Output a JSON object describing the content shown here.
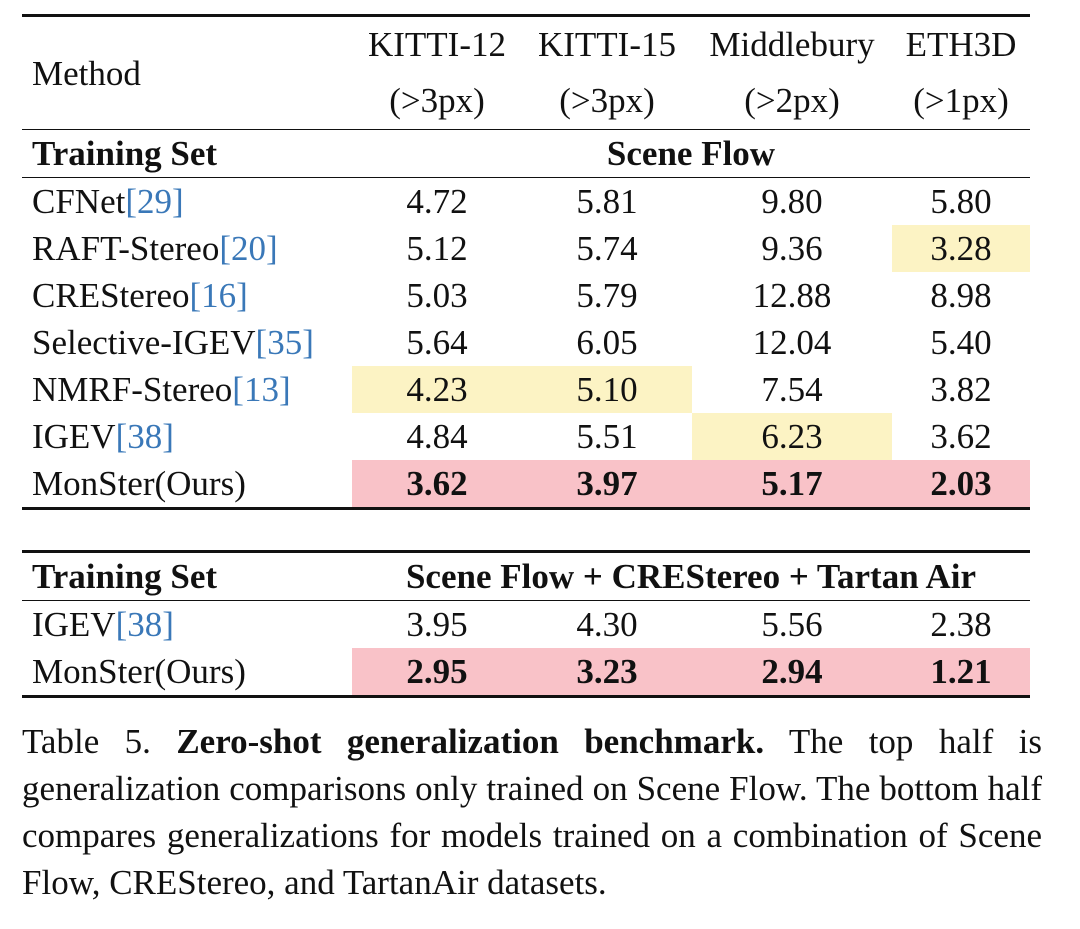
{
  "table": {
    "columns": [
      {
        "name": "KITTI-12",
        "metric": "(>3px)"
      },
      {
        "name": "KITTI-15",
        "metric": "(>3px)"
      },
      {
        "name": "Middlebury",
        "metric": "(>2px)"
      },
      {
        "name": "ETH3D",
        "metric": "(>1px)"
      }
    ],
    "method_header": "Method",
    "training_set_label": "Training Set",
    "section1": {
      "training": "Scene Flow",
      "rows": [
        {
          "method": "CFNet",
          "ref": "29",
          "values": [
            "4.72",
            "5.81",
            "9.80",
            "5.80"
          ]
        },
        {
          "method": "RAFT-Stereo",
          "ref": "20",
          "values": [
            "5.12",
            "5.74",
            "9.36",
            "3.28"
          ]
        },
        {
          "method": "CREStereo",
          "ref": "16",
          "values": [
            "5.03",
            "5.79",
            "12.88",
            "8.98"
          ]
        },
        {
          "method": "Selective-IGEV",
          "ref": "35",
          "values": [
            "5.64",
            "6.05",
            "12.04",
            "5.40"
          ]
        },
        {
          "method": "NMRF-Stereo",
          "ref": "13",
          "values": [
            "4.23",
            "5.10",
            "7.54",
            "3.82"
          ]
        },
        {
          "method": "IGEV",
          "ref": "38",
          "values": [
            "4.84",
            "5.51",
            "6.23",
            "3.62"
          ]
        },
        {
          "method": "MonSter(Ours)",
          "values": [
            "3.62",
            "3.97",
            "5.17",
            "2.03"
          ]
        }
      ]
    },
    "section2": {
      "training": "Scene Flow + CREStereo + Tartan Air",
      "rows": [
        {
          "method": "IGEV",
          "ref": "38",
          "values": [
            "3.95",
            "4.30",
            "5.56",
            "2.38"
          ]
        },
        {
          "method": "MonSter(Ours)",
          "values": [
            "2.95",
            "3.23",
            "2.94",
            "1.21"
          ]
        }
      ]
    }
  },
  "caption": {
    "label": "Table 5.",
    "bold_title": "Zero-shot generalization benchmark.",
    "text": "The top half is generalization comparisons only trained on Scene Flow. The bottom half compares generalizations for models trained on a combination of Scene Flow, CREStereo, and TartanAir datasets."
  },
  "colors": {
    "second_best": "#fcf3c4",
    "best": "#f9c2c8",
    "citation": "#3a78b8"
  }
}
